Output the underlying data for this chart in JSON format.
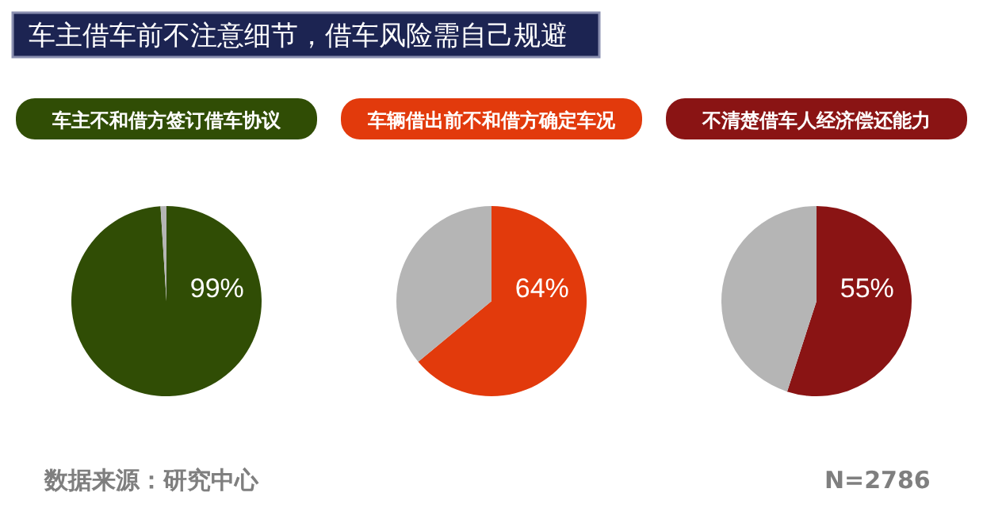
{
  "chart_data": [
    {
      "type": "other",
      "title": "车主借车前不注意细节，借车风险需自己规避",
      "annotations": [
        "数据来源：研究中心",
        "N=2786"
      ]
    },
    {
      "type": "pie",
      "title": "车主不和借方签订借车协议",
      "categories": [
        null,
        null
      ],
      "values": [
        99,
        1
      ],
      "colors": [
        "#304d05",
        "#b5b5b5"
      ],
      "value_labels": [
        "99%",
        null
      ]
    },
    {
      "type": "pie",
      "title": "车辆借出前不和借方确定车况",
      "categories": [
        null,
        null
      ],
      "values": [
        64,
        36
      ],
      "colors": [
        "#e23a0c",
        "#b5b5b5"
      ],
      "value_labels": [
        "64%",
        null
      ]
    },
    {
      "type": "pie",
      "title": "不清楚借车人经济偿还能力",
      "categories": [
        null,
        null
      ],
      "values": [
        55,
        45
      ],
      "colors": [
        "#8a1414",
        "#b5b5b5"
      ],
      "value_labels": [
        "55%",
        null
      ]
    }
  ]
}
